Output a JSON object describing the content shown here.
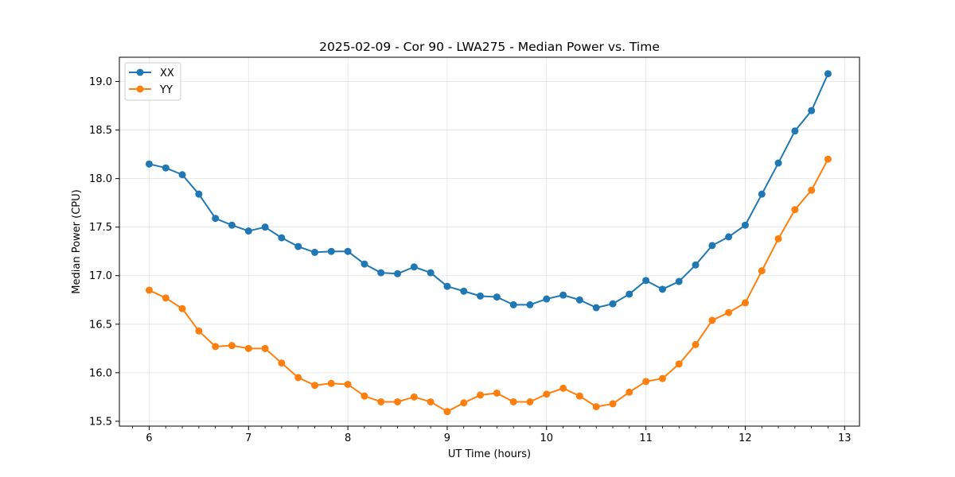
{
  "chart_data": {
    "type": "line",
    "title": "2025-02-09 - Cor 90 - LWA275 - Median Power vs. Time",
    "xlabel": "UT Time (hours)",
    "ylabel": "Median Power (CPU)",
    "xlim": [
      5.7,
      13.15
    ],
    "ylim": [
      15.45,
      19.25
    ],
    "xticks": [
      6,
      7,
      8,
      9,
      10,
      11,
      12,
      13
    ],
    "yticks": [
      15.5,
      16.0,
      16.5,
      17.0,
      17.5,
      18.0,
      18.5,
      19.0
    ],
    "ytick_labels": [
      "15.5",
      "16.0",
      "16.5",
      "17.0",
      "17.5",
      "18.0",
      "18.5",
      "19.0"
    ],
    "grid": true,
    "legend_position": "top-left",
    "x": [
      6.0,
      6.167,
      6.333,
      6.5,
      6.667,
      6.833,
      7.0,
      7.167,
      7.333,
      7.5,
      7.667,
      7.833,
      8.0,
      8.167,
      8.333,
      8.5,
      8.667,
      8.833,
      9.0,
      9.167,
      9.333,
      9.5,
      9.667,
      9.833,
      10.0,
      10.167,
      10.333,
      10.5,
      10.667,
      10.833,
      11.0,
      11.167,
      11.333,
      11.5,
      11.667,
      11.833,
      12.0,
      12.167,
      12.333,
      12.5,
      12.667,
      12.833
    ],
    "series": [
      {
        "name": "XX",
        "color": "#1f77b4",
        "values": [
          18.15,
          18.11,
          18.04,
          17.84,
          17.59,
          17.52,
          17.46,
          17.5,
          17.39,
          17.3,
          17.24,
          17.25,
          17.25,
          17.12,
          17.03,
          17.02,
          17.09,
          17.03,
          16.89,
          16.84,
          16.79,
          16.78,
          16.7,
          16.7,
          16.76,
          16.8,
          16.75,
          16.67,
          16.71,
          16.81,
          16.95,
          16.86,
          16.94,
          17.11,
          17.31,
          17.4,
          17.52,
          17.84,
          18.16,
          18.49,
          18.7,
          19.08
        ]
      },
      {
        "name": "YY",
        "color": "#ff7f0e",
        "values": [
          16.85,
          16.77,
          16.66,
          16.43,
          16.27,
          16.28,
          16.25,
          16.25,
          16.1,
          15.95,
          15.87,
          15.89,
          15.88,
          15.76,
          15.7,
          15.7,
          15.75,
          15.7,
          15.6,
          15.69,
          15.77,
          15.79,
          15.7,
          15.7,
          15.78,
          15.84,
          15.76,
          15.65,
          15.68,
          15.8,
          15.91,
          15.94,
          16.09,
          16.29,
          16.54,
          16.62,
          16.72,
          17.05,
          17.38,
          17.68,
          17.88,
          18.2
        ]
      }
    ]
  }
}
